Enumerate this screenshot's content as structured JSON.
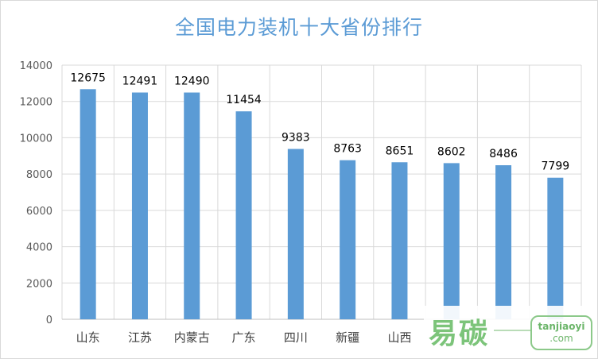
{
  "chart_data": {
    "type": "bar",
    "title": "全国电力装机十大省份排行",
    "categories": [
      "山东",
      "江苏",
      "内蒙古",
      "广东",
      "四川",
      "新疆",
      "山西",
      "",
      "",
      ""
    ],
    "values": [
      12675,
      12491,
      12490,
      11454,
      9383,
      8763,
      8651,
      8602,
      8486,
      7799
    ],
    "ylim": [
      0,
      14000
    ],
    "yticks": [
      0,
      2000,
      4000,
      6000,
      8000,
      10000,
      12000,
      14000
    ],
    "grid": true,
    "legend": "none",
    "bar_color": "#5b9bd5"
  },
  "watermark": {
    "logo_text": "易碳",
    "domain_text": "tanjiaoyi",
    "tld_text": ".com"
  }
}
